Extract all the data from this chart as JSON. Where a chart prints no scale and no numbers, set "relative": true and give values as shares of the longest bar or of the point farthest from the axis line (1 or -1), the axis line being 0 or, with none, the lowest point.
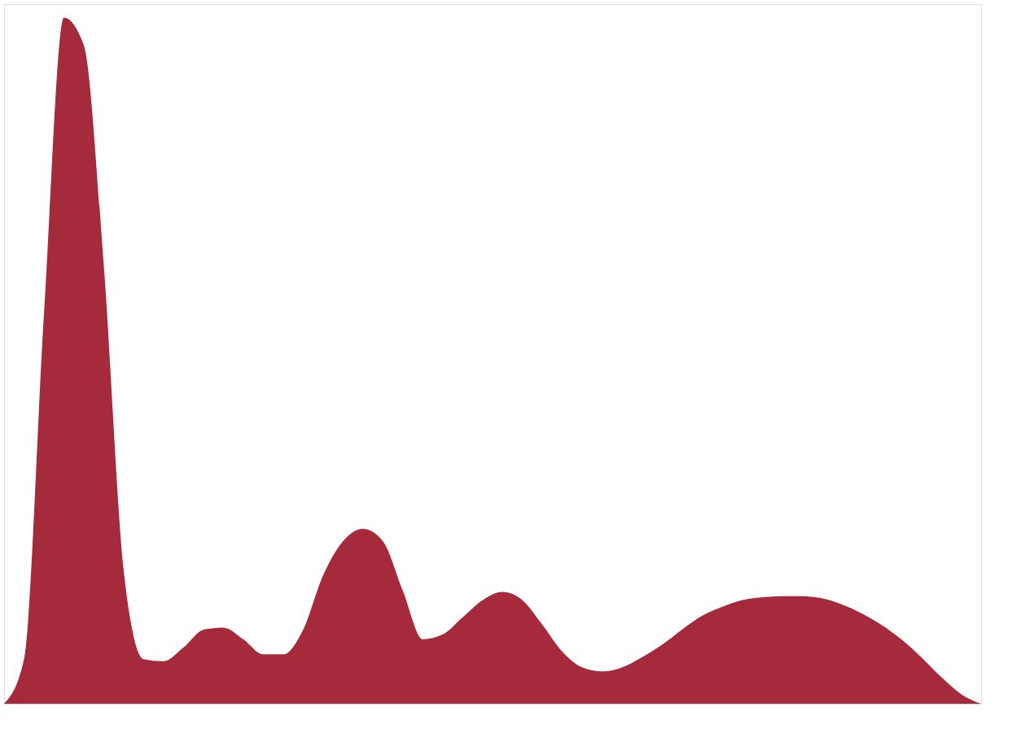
{
  "chart_data": {
    "type": "area",
    "relative": true,
    "tick_labels": false,
    "grid": false,
    "categories": [
      null,
      null,
      null,
      null,
      null,
      null,
      null,
      null,
      null,
      null,
      null,
      null,
      null,
      null,
      null,
      null,
      null,
      null,
      null,
      null,
      null,
      null,
      null,
      null,
      null,
      null,
      null,
      null,
      null,
      null,
      null,
      null,
      null,
      null,
      null,
      null,
      null,
      null,
      null,
      null,
      null,
      null,
      null,
      null,
      null,
      null,
      null,
      null,
      null,
      null
    ],
    "series": [
      {
        "color": "#a52a3c",
        "values": [
          0,
          0.065,
          0.568,
          1.0,
          0.96,
          0.64,
          0.194,
          0.065,
          0.062,
          0.082,
          0.108,
          0.111,
          0.094,
          0.072,
          0.072,
          0.108,
          0.187,
          0.237,
          0.255,
          0.237,
          0.165,
          0.094,
          0.101,
          0.126,
          0.151,
          0.163,
          0.151,
          0.115,
          0.076,
          0.053,
          0.047,
          0.053,
          0.068,
          0.086,
          0.108,
          0.128,
          0.141,
          0.151,
          0.155,
          0.157,
          0.157,
          0.154,
          0.145,
          0.132,
          0.115,
          0.094,
          0.068,
          0.039,
          0.014,
          0
        ]
      }
    ]
  }
}
